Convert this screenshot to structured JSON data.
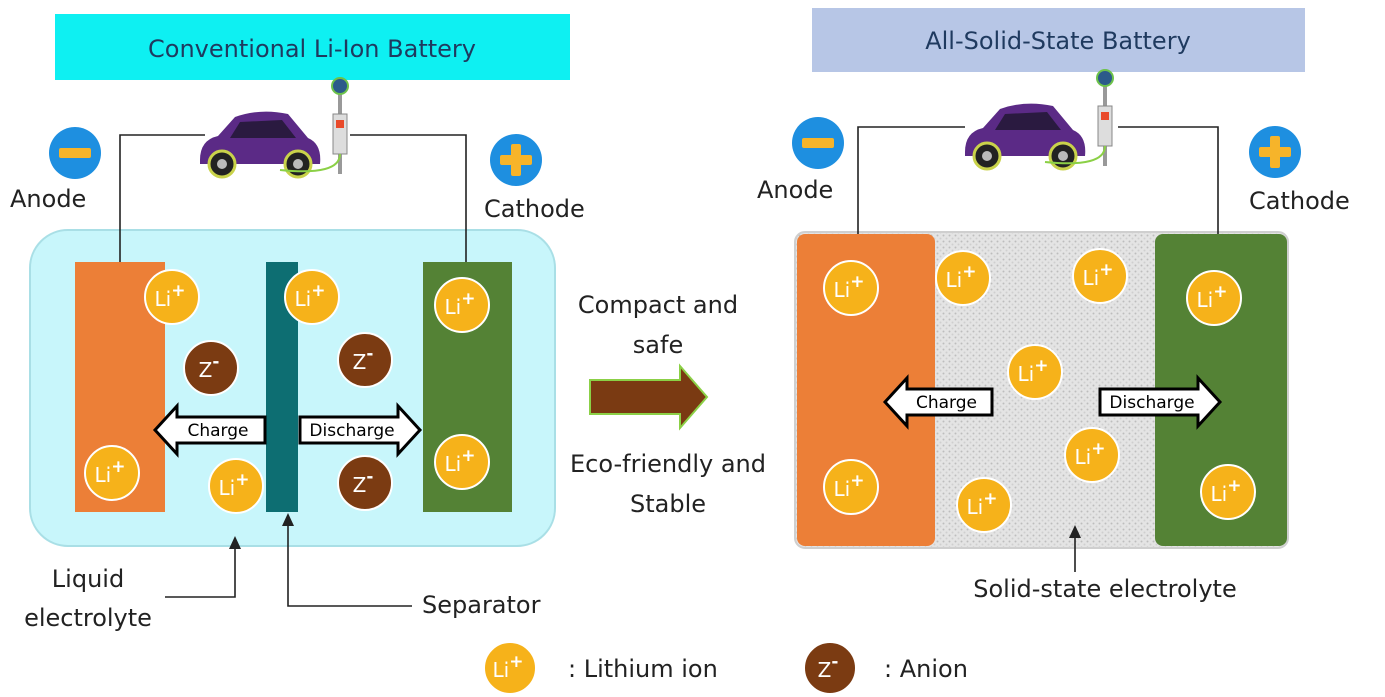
{
  "left": {
    "title": "Conventional Li-Ion Battery",
    "anode": "Anode",
    "cathode": "Cathode",
    "charge": "Charge",
    "discharge": "Discharge",
    "liquid_electrolyte": [
      "Liquid",
      "electrolyte"
    ],
    "separator": "Separator"
  },
  "middle": {
    "top": [
      "Compact and",
      "safe"
    ],
    "bottom": [
      "Eco-friendly and",
      "Stable"
    ]
  },
  "right": {
    "title": "All-Solid-State Battery",
    "anode": "Anode",
    "cathode": "Cathode",
    "charge": "Charge",
    "discharge": "Discharge",
    "electrolyte": "Solid-state electrolyte"
  },
  "ions": {
    "lithium": "Li",
    "lithium_charge": "+",
    "anion": "Z",
    "anion_charge": "-"
  },
  "legend": {
    "lithium": ": Lithium ion",
    "anion": ": Anion"
  }
}
